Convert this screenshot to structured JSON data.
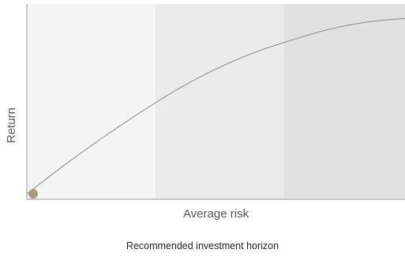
{
  "chart_data": {
    "type": "line",
    "title": "",
    "xlabel": "Average risk",
    "ylabel": "Return",
    "grid": false,
    "x": [
      0,
      1,
      2,
      3,
      4,
      5,
      6,
      7,
      8,
      9,
      10
    ],
    "series": [
      {
        "values": [
          0.0,
          1.6,
          3.1,
          4.5,
          5.8,
          6.9,
          7.8,
          8.5,
          9.1,
          9.5,
          9.7
        ]
      }
    ],
    "xlim": [
      0,
      10
    ],
    "ylim": [
      -0.3,
      10.5
    ],
    "start_marker": {
      "x": 0,
      "y": 0
    },
    "bands": [
      {
        "from": 0,
        "to": 3.4,
        "color": "#f4f4f4"
      },
      {
        "from": 3.4,
        "to": 6.8,
        "color": "#ebebeb"
      },
      {
        "from": 6.8,
        "to": 10,
        "color": "#e1e1e1"
      }
    ]
  },
  "footer": "Recommended investment horizon",
  "colors": {
    "line": "#8a8a8a",
    "marker": "#a79a7f",
    "axis": "#9a9a9a"
  }
}
